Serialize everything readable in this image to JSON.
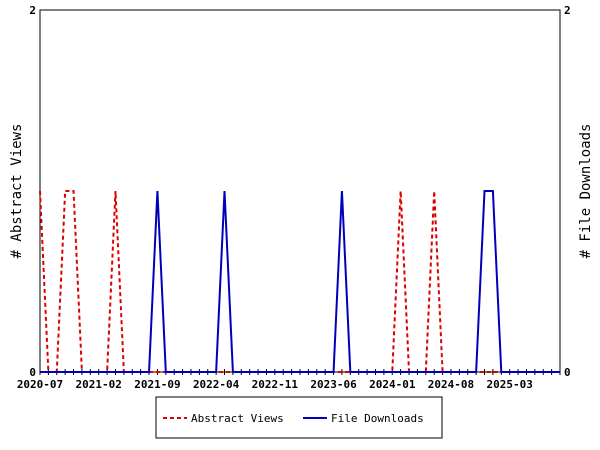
{
  "chart_data": {
    "type": "line",
    "title": "",
    "xlabel": "",
    "ylabel_left": "# Abstract Views",
    "ylabel_right": "# File Downloads",
    "ylim": [
      0,
      2
    ],
    "yticks_left": [
      "0",
      "2"
    ],
    "yticks_right": [
      "0",
      "2"
    ],
    "start_month": "2020-07",
    "month_count": 63,
    "xtick_labels": [
      "2020-07",
      "2021-02",
      "2021-09",
      "2022-04",
      "2022-11",
      "2023-06",
      "2024-01",
      "2024-08",
      "2025-03"
    ],
    "xtick_label_indices": [
      0,
      7,
      14,
      21,
      28,
      35,
      42,
      49,
      56
    ],
    "series": [
      {
        "name": "Abstract Views",
        "color": "#dd0000",
        "dash": true,
        "nonzero": {
          "0": 1,
          "3": 1,
          "4": 1,
          "9": 1,
          "43": 1,
          "47": 1
        }
      },
      {
        "name": "File Downloads",
        "color": "#0000bb",
        "dash": false,
        "nonzero": {
          "14": 1,
          "22": 1,
          "36": 1,
          "53": 1,
          "54": 1
        }
      }
    ],
    "legend_position": "bottom"
  }
}
